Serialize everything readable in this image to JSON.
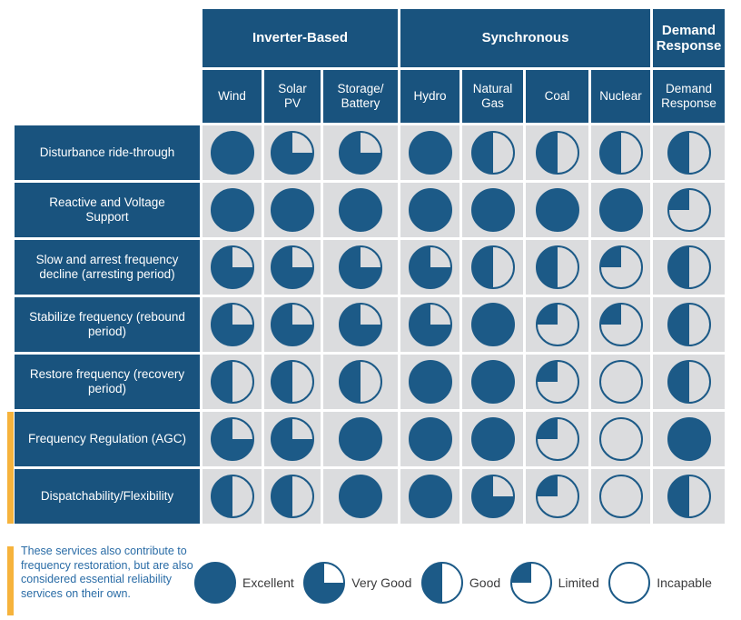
{
  "colors": {
    "header_blue": "#19537E",
    "pie_blue": "#1C5A87",
    "cell_gray": "#DBDCDE",
    "flag_yellow": "#F6B33C",
    "note_blue": "#2A6CA6",
    "legend_text": "#3B3B3C"
  },
  "chart_data": {
    "type": "table",
    "title": "",
    "column_groups": [
      {
        "label": "Inverter-Based",
        "span": 3
      },
      {
        "label": "Synchronous",
        "span": 4
      },
      {
        "label": "Demand\nResponse",
        "span": 1
      }
    ],
    "columns": [
      "Wind",
      "Solar\nPV",
      "Storage/\nBattery",
      "Hydro",
      "Natural\nGas",
      "Coal",
      "Nuclear",
      "Demand\nResponse"
    ],
    "rows": [
      {
        "label": "Disturbance ride-through",
        "values": [
          1,
          0.75,
          0.75,
          1,
          0.5,
          0.5,
          0.5,
          0.5
        ],
        "flagged": false
      },
      {
        "label": "Reactive and Voltage Support",
        "values": [
          1,
          1,
          1,
          1,
          1,
          1,
          1,
          0.25
        ],
        "flagged": false
      },
      {
        "label": "Slow and arrest frequency decline (arresting period)",
        "values": [
          0.75,
          0.75,
          0.75,
          0.75,
          0.5,
          0.5,
          0.25,
          0.5
        ],
        "flagged": false
      },
      {
        "label": "Stabilize frequency (rebound period)",
        "values": [
          0.75,
          0.75,
          0.75,
          0.75,
          1,
          0.25,
          0.25,
          0.5
        ],
        "flagged": false
      },
      {
        "label": "Restore frequency (recovery period)",
        "values": [
          0.5,
          0.5,
          0.5,
          1,
          1,
          0.25,
          0,
          0.5
        ],
        "flagged": false
      },
      {
        "label": "Frequency Regulation (AGC)",
        "values": [
          0.75,
          0.75,
          1,
          1,
          1,
          0.25,
          0,
          1
        ],
        "flagged": true
      },
      {
        "label": "Dispatchability/Flexibility",
        "values": [
          0.5,
          0.5,
          1,
          1,
          0.75,
          0.25,
          0,
          0.5
        ],
        "flagged": true
      }
    ],
    "rating_scale": [
      {
        "label": "Excellent",
        "fill_fraction": 1
      },
      {
        "label": "Very Good",
        "fill_fraction": 0.75
      },
      {
        "label": "Good",
        "fill_fraction": 0.5
      },
      {
        "label": "Limited",
        "fill_fraction": 0.25
      },
      {
        "label": "Incapable",
        "fill_fraction": 0
      }
    ],
    "footnote": "These services also contribute to frequency restoration, but are also considered essential reliability services on their own."
  }
}
